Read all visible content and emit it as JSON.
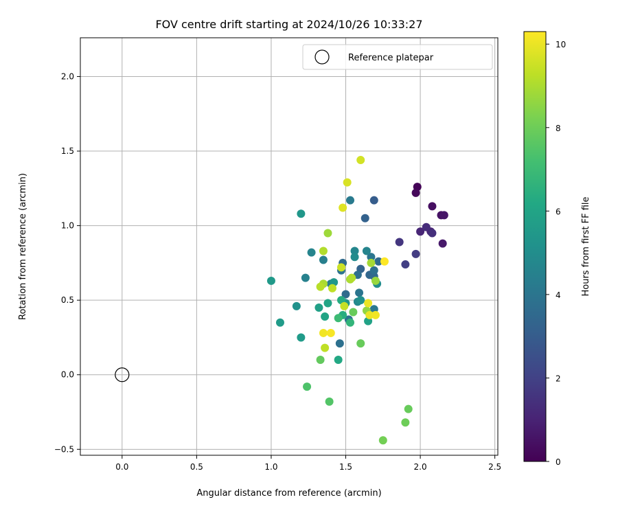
{
  "chart_data": {
    "type": "scatter",
    "title": "FOV centre drift starting at 2024/10/26 10:33:27",
    "xlabel": "Angular distance from reference (arcmin)",
    "ylabel": "Rotation from reference (arcmin)",
    "xlim": [
      -0.28,
      2.52
    ],
    "ylim": [
      -0.54,
      2.26
    ],
    "xticks": [
      "0.0",
      "0.5",
      "1.0",
      "1.5",
      "2.0",
      "2.5"
    ],
    "yticks": [
      "−0.5",
      "0.0",
      "0.5",
      "1.0",
      "1.5",
      "2.0"
    ],
    "grid": true,
    "legend": {
      "placement": "top-right",
      "entries": [
        "Reference platepar"
      ]
    },
    "reference_point": {
      "x": 0.0,
      "y": 0.0,
      "marker": "open-circle"
    },
    "colorbar": {
      "label": "Hours from first FF file",
      "range": [
        0,
        10.3
      ],
      "ticks": [
        "0",
        "2",
        "4",
        "6",
        "8",
        "10"
      ],
      "colormap": "viridis"
    },
    "points": [
      {
        "x": 1.98,
        "y": 1.26,
        "c": 0.1
      },
      {
        "x": 1.97,
        "y": 1.22,
        "c": 0.2
      },
      {
        "x": 2.08,
        "y": 1.13,
        "c": 0.4
      },
      {
        "x": 2.14,
        "y": 1.07,
        "c": 0.5
      },
      {
        "x": 2.16,
        "y": 1.07,
        "c": 0.6
      },
      {
        "x": 2.15,
        "y": 0.88,
        "c": 0.7
      },
      {
        "x": 2.07,
        "y": 0.96,
        "c": 1.0
      },
      {
        "x": 2.0,
        "y": 0.96,
        "c": 1.1
      },
      {
        "x": 2.04,
        "y": 0.99,
        "c": 1.3
      },
      {
        "x": 2.08,
        "y": 0.95,
        "c": 1.4
      },
      {
        "x": 1.86,
        "y": 0.89,
        "c": 1.6
      },
      {
        "x": 1.97,
        "y": 0.81,
        "c": 1.8
      },
      {
        "x": 1.9,
        "y": 0.74,
        "c": 1.9
      },
      {
        "x": 1.69,
        "y": 1.17,
        "c": 3.0
      },
      {
        "x": 1.63,
        "y": 1.05,
        "c": 3.2
      },
      {
        "x": 1.6,
        "y": 0.71,
        "c": 3.3
      },
      {
        "x": 1.66,
        "y": 0.67,
        "c": 3.4
      },
      {
        "x": 1.69,
        "y": 0.66,
        "c": 3.5
      },
      {
        "x": 1.48,
        "y": 0.75,
        "c": 3.6
      },
      {
        "x": 1.53,
        "y": 1.17,
        "c": 4.2
      },
      {
        "x": 1.58,
        "y": 0.67,
        "c": 3.7
      },
      {
        "x": 1.72,
        "y": 0.76,
        "c": 3.6
      },
      {
        "x": 1.69,
        "y": 0.7,
        "c": 3.8
      },
      {
        "x": 1.47,
        "y": 0.7,
        "c": 3.9
      },
      {
        "x": 1.67,
        "y": 0.79,
        "c": 4.0
      },
      {
        "x": 1.5,
        "y": 0.54,
        "c": 3.6
      },
      {
        "x": 1.46,
        "y": 0.21,
        "c": 3.8
      },
      {
        "x": 1.52,
        "y": 0.37,
        "c": 3.9
      },
      {
        "x": 1.59,
        "y": 0.55,
        "c": 4.0
      },
      {
        "x": 1.69,
        "y": 0.44,
        "c": 4.1
      },
      {
        "x": 1.66,
        "y": 0.41,
        "c": 4.2
      },
      {
        "x": 1.4,
        "y": 0.61,
        "c": 4.3
      },
      {
        "x": 1.35,
        "y": 0.77,
        "c": 4.4
      },
      {
        "x": 1.23,
        "y": 0.65,
        "c": 4.5
      },
      {
        "x": 1.64,
        "y": 0.83,
        "c": 4.6
      },
      {
        "x": 1.56,
        "y": 0.83,
        "c": 4.7
      },
      {
        "x": 1.58,
        "y": 0.49,
        "c": 4.8
      },
      {
        "x": 1.56,
        "y": 0.79,
        "c": 4.9
      },
      {
        "x": 1.71,
        "y": 0.61,
        "c": 5.0
      },
      {
        "x": 1.27,
        "y": 0.82,
        "c": 4.6
      },
      {
        "x": 1.6,
        "y": 0.5,
        "c": 5.1
      },
      {
        "x": 1.17,
        "y": 0.46,
        "c": 5.2
      },
      {
        "x": 1.5,
        "y": 0.48,
        "c": 5.3
      },
      {
        "x": 1.42,
        "y": 0.62,
        "c": 5.4
      },
      {
        "x": 1.2,
        "y": 1.08,
        "c": 5.4
      },
      {
        "x": 1.0,
        "y": 0.63,
        "c": 5.5
      },
      {
        "x": 1.06,
        "y": 0.35,
        "c": 5.6
      },
      {
        "x": 1.2,
        "y": 0.25,
        "c": 5.6
      },
      {
        "x": 1.32,
        "y": 0.45,
        "c": 5.8
      },
      {
        "x": 1.65,
        "y": 0.36,
        "c": 5.9
      },
      {
        "x": 1.38,
        "y": 0.48,
        "c": 6.0
      },
      {
        "x": 1.36,
        "y": 0.39,
        "c": 6.0
      },
      {
        "x": 1.45,
        "y": 0.1,
        "c": 6.2
      },
      {
        "x": 1.47,
        "y": 0.5,
        "c": 6.3
      },
      {
        "x": 1.48,
        "y": 0.4,
        "c": 6.4
      },
      {
        "x": 1.53,
        "y": 0.35,
        "c": 6.7
      },
      {
        "x": 1.45,
        "y": 0.38,
        "c": 7.0
      },
      {
        "x": 1.24,
        "y": -0.08,
        "c": 7.4
      },
      {
        "x": 1.39,
        "y": -0.18,
        "c": 7.5
      },
      {
        "x": 1.33,
        "y": 0.1,
        "c": 7.8
      },
      {
        "x": 1.55,
        "y": 0.42,
        "c": 7.9
      },
      {
        "x": 1.6,
        "y": 0.21,
        "c": 7.9
      },
      {
        "x": 1.92,
        "y": -0.23,
        "c": 7.9
      },
      {
        "x": 1.9,
        "y": -0.32,
        "c": 8.0
      },
      {
        "x": 1.75,
        "y": -0.44,
        "c": 8.1
      },
      {
        "x": 1.64,
        "y": 0.43,
        "c": 8.6
      },
      {
        "x": 1.7,
        "y": 0.63,
        "c": 8.7
      },
      {
        "x": 1.67,
        "y": 0.75,
        "c": 8.9
      },
      {
        "x": 1.38,
        "y": 0.95,
        "c": 8.8
      },
      {
        "x": 1.53,
        "y": 0.64,
        "c": 9.0
      },
      {
        "x": 1.54,
        "y": 0.65,
        "c": 9.1
      },
      {
        "x": 1.35,
        "y": 0.83,
        "c": 9.1
      },
      {
        "x": 1.35,
        "y": 0.61,
        "c": 9.0
      },
      {
        "x": 1.33,
        "y": 0.59,
        "c": 9.2
      },
      {
        "x": 1.36,
        "y": 0.18,
        "c": 9.3
      },
      {
        "x": 1.41,
        "y": 0.58,
        "c": 9.3
      },
      {
        "x": 1.49,
        "y": 0.46,
        "c": 9.4
      },
      {
        "x": 1.47,
        "y": 0.72,
        "c": 9.5
      },
      {
        "x": 1.6,
        "y": 1.44,
        "c": 9.6
      },
      {
        "x": 1.51,
        "y": 1.29,
        "c": 9.7
      },
      {
        "x": 1.48,
        "y": 1.12,
        "c": 9.8
      },
      {
        "x": 1.65,
        "y": 0.48,
        "c": 10.0
      },
      {
        "x": 1.66,
        "y": 0.4,
        "c": 10.0
      },
      {
        "x": 1.7,
        "y": 0.4,
        "c": 10.1
      },
      {
        "x": 1.35,
        "y": 0.28,
        "c": 10.1
      },
      {
        "x": 1.4,
        "y": 0.28,
        "c": 10.2
      },
      {
        "x": 1.76,
        "y": 0.76,
        "c": 10.3
      }
    ]
  }
}
